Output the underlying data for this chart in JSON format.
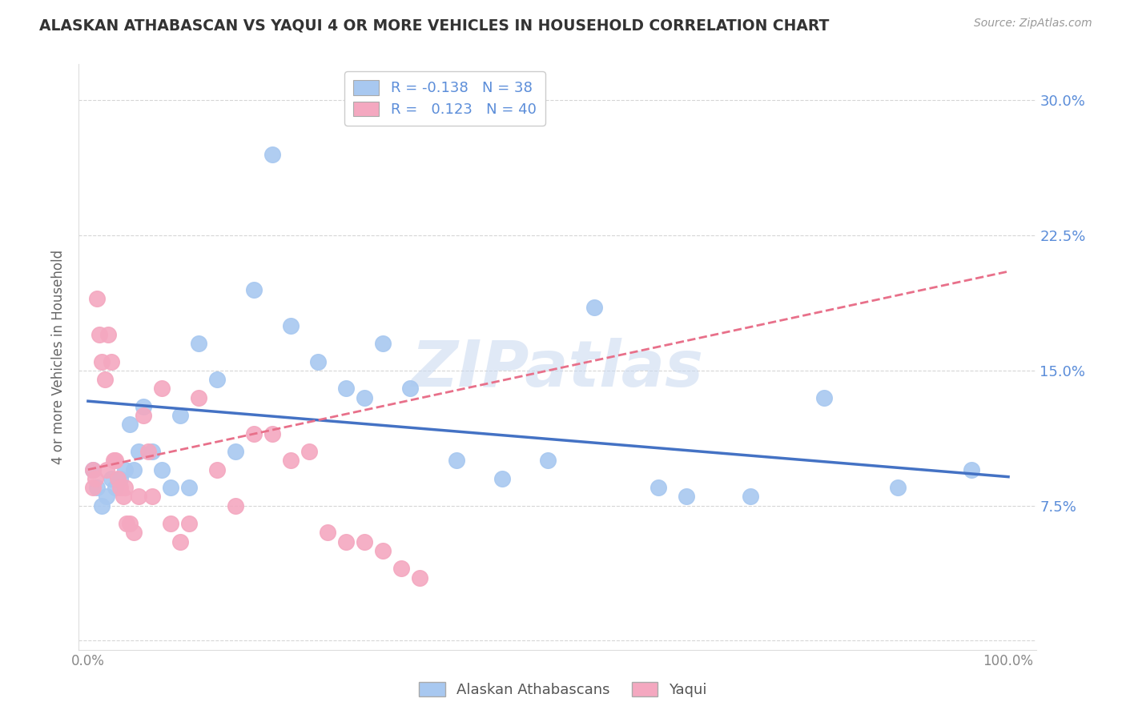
{
  "title": "ALASKAN ATHABASCAN VS YAQUI 4 OR MORE VEHICLES IN HOUSEHOLD CORRELATION CHART",
  "source": "Source: ZipAtlas.com",
  "ylabel": "4 or more Vehicles in Household",
  "blue_color": "#A8C8F0",
  "pink_color": "#F4A8C0",
  "blue_line_color": "#4472C4",
  "pink_line_color": "#E8708A",
  "background_color": "#FFFFFF",
  "grid_color": "#CCCCCC",
  "legend_R_blue": "-0.138",
  "legend_N_blue": "38",
  "legend_R_pink": "0.123",
  "legend_N_pink": "40",
  "label_blue": "Alaskan Athabascans",
  "label_pink": "Yaqui",
  "title_color": "#333333",
  "right_axis_color": "#5B8DD9",
  "watermark": "ZIPatlas",
  "blue_scatter_x": [
    0.005,
    0.01,
    0.015,
    0.02,
    0.025,
    0.03,
    0.035,
    0.04,
    0.045,
    0.05,
    0.055,
    0.06,
    0.07,
    0.08,
    0.09,
    0.1,
    0.11,
    0.12,
    0.14,
    0.16,
    0.18,
    0.2,
    0.22,
    0.25,
    0.28,
    0.3,
    0.32,
    0.35,
    0.4,
    0.45,
    0.5,
    0.55,
    0.62,
    0.65,
    0.72,
    0.8,
    0.88,
    0.96
  ],
  "blue_scatter_y": [
    0.095,
    0.085,
    0.075,
    0.08,
    0.09,
    0.085,
    0.09,
    0.095,
    0.12,
    0.095,
    0.105,
    0.13,
    0.105,
    0.095,
    0.085,
    0.125,
    0.085,
    0.165,
    0.145,
    0.105,
    0.195,
    0.27,
    0.175,
    0.155,
    0.14,
    0.135,
    0.165,
    0.14,
    0.1,
    0.09,
    0.1,
    0.185,
    0.085,
    0.08,
    0.08,
    0.135,
    0.085,
    0.095
  ],
  "pink_scatter_x": [
    0.005,
    0.005,
    0.008,
    0.01,
    0.012,
    0.015,
    0.018,
    0.02,
    0.022,
    0.025,
    0.028,
    0.03,
    0.032,
    0.035,
    0.038,
    0.04,
    0.042,
    0.045,
    0.05,
    0.055,
    0.06,
    0.065,
    0.07,
    0.08,
    0.09,
    0.1,
    0.11,
    0.12,
    0.14,
    0.16,
    0.18,
    0.2,
    0.22,
    0.24,
    0.26,
    0.28,
    0.3,
    0.32,
    0.34,
    0.36
  ],
  "pink_scatter_y": [
    0.095,
    0.085,
    0.09,
    0.19,
    0.17,
    0.155,
    0.145,
    0.095,
    0.17,
    0.155,
    0.1,
    0.1,
    0.09,
    0.085,
    0.08,
    0.085,
    0.065,
    0.065,
    0.06,
    0.08,
    0.125,
    0.105,
    0.08,
    0.14,
    0.065,
    0.055,
    0.065,
    0.135,
    0.095,
    0.075,
    0.115,
    0.115,
    0.1,
    0.105,
    0.06,
    0.055,
    0.055,
    0.05,
    0.04,
    0.035
  ],
  "blue_line_x0": 0.0,
  "blue_line_x1": 1.0,
  "blue_line_y0": 0.133,
  "blue_line_y1": 0.091,
  "pink_line_x0": 0.0,
  "pink_line_x1": 1.0,
  "pink_line_y0": 0.095,
  "pink_line_y1": 0.205,
  "xlim": [
    -0.01,
    1.03
  ],
  "ylim": [
    -0.005,
    0.32
  ],
  "yticks": [
    0.0,
    0.075,
    0.15,
    0.225,
    0.3
  ],
  "ytick_labels_right": [
    "",
    "7.5%",
    "15.0%",
    "22.5%",
    "30.0%"
  ],
  "xticks": [
    0.0,
    0.25,
    0.5,
    0.75,
    1.0
  ],
  "xtick_labels": [
    "0.0%",
    "",
    "",
    "",
    "100.0%"
  ]
}
